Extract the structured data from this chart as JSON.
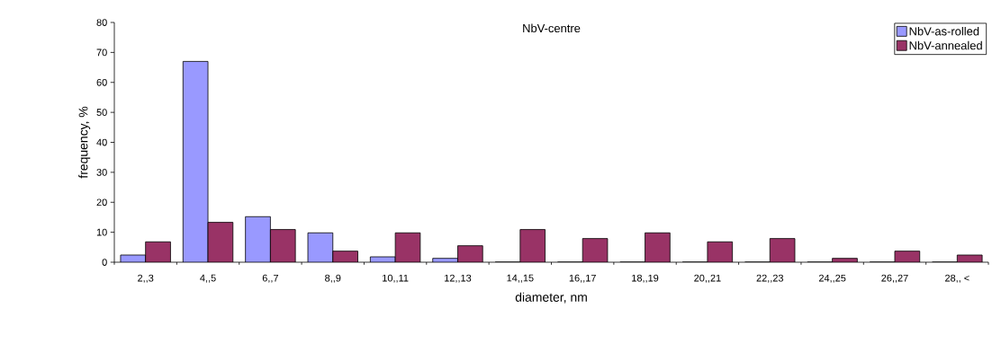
{
  "chart_data": {
    "type": "bar",
    "title": "NbV-centre",
    "xlabel": "diameter, nm",
    "ylabel": "frequency, %",
    "categories": [
      "2,,3",
      "4,,5",
      "6,,7",
      "8,,9",
      "10,,11",
      "12,,13",
      "14,,15",
      "16,,17",
      "18,,19",
      "20,,21",
      "22,,23",
      "24,,25",
      "26,,27",
      "28,, <"
    ],
    "series": [
      {
        "name": "NbV-as-rolled",
        "color": "#9999ff",
        "values": [
          2.4,
          67,
          15.2,
          9.8,
          1.8,
          1.3,
          0,
          0,
          0,
          0,
          0,
          0,
          0,
          0
        ]
      },
      {
        "name": "NbV-annealed",
        "color": "#993366",
        "values": [
          6.8,
          13.3,
          10.9,
          3.7,
          9.8,
          5.5,
          10.9,
          7.9,
          9.8,
          6.8,
          7.9,
          1.3,
          3.7,
          2.4
        ]
      }
    ],
    "ylim": [
      0,
      80
    ],
    "yticks": [
      0,
      10,
      20,
      30,
      40,
      50,
      60,
      70,
      80
    ],
    "grid": false,
    "legend": "top right"
  }
}
